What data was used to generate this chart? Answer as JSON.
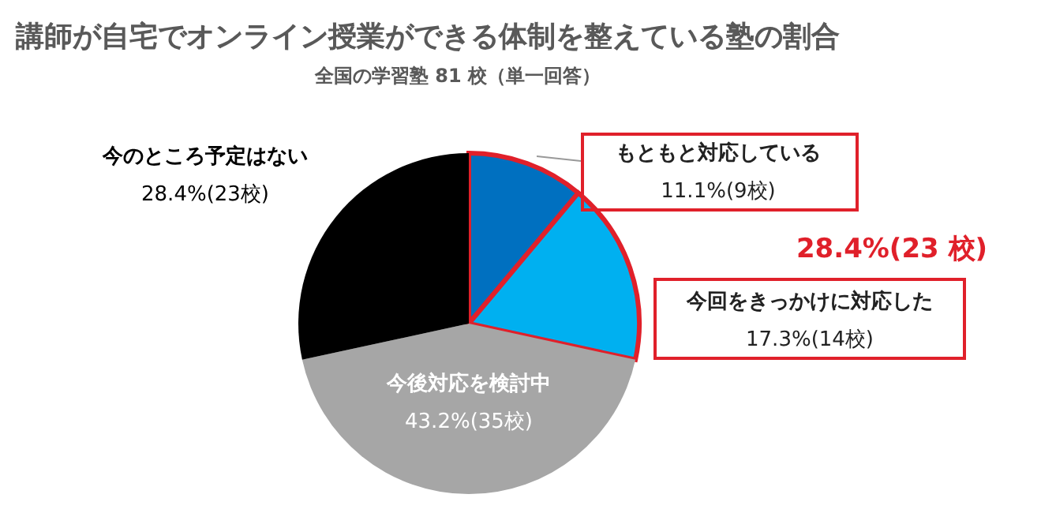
{
  "chart_data": {
    "type": "pie",
    "title": "講師が自宅でオンライン授業ができる体制を整えている塾の割合",
    "subtitle": "全国の学習塾 81 校（単一回答）",
    "categories": [
      "もともと対応している",
      "今回をきっかけに対応した",
      "今後対応を検討中",
      "今のところ予定はない"
    ],
    "values": [
      11.1,
      17.3,
      43.2,
      28.4
    ],
    "value_labels": [
      "11.1%(9校)",
      "17.3%(14校)",
      "43.2%(35校)",
      "28.4%(23校)"
    ],
    "colors": [
      "#0070c0",
      "#00b0f0",
      "#a6a6a6",
      "#000000"
    ],
    "annotations": [
      "28.4%(23 校)"
    ]
  }
}
